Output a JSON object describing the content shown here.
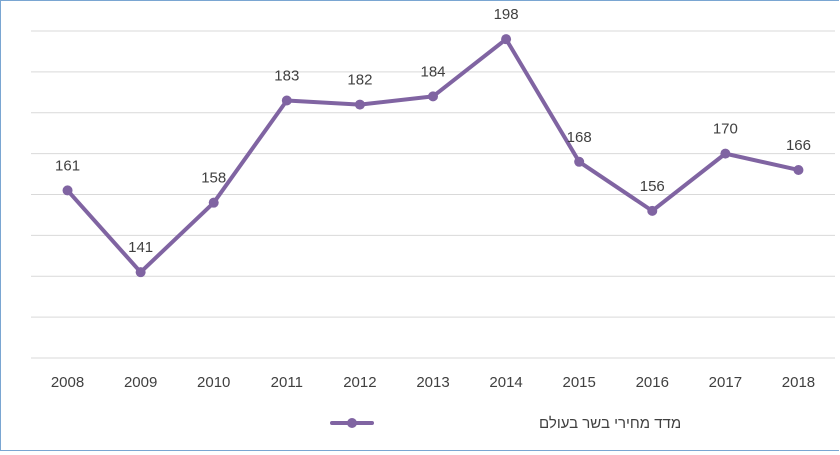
{
  "chart_data": {
    "type": "line",
    "categories": [
      "2008",
      "2009",
      "2010",
      "2011",
      "2012",
      "2013",
      "2014",
      "2015",
      "2016",
      "2017",
      "2018"
    ],
    "series": [
      {
        "name": "מדד מחירי בשר בעולם",
        "values": [
          161,
          141,
          158,
          183,
          182,
          184,
          198,
          168,
          156,
          170,
          166
        ],
        "color": "#8064a2"
      }
    ],
    "ylim": [
      120,
      200
    ],
    "y_gridline_step": 10,
    "grid": true,
    "y_tick_labels_shown": false,
    "data_labels": true,
    "legend_position": "bottom",
    "gridline_color": "#d9d9d9",
    "text_color": "#404040"
  }
}
